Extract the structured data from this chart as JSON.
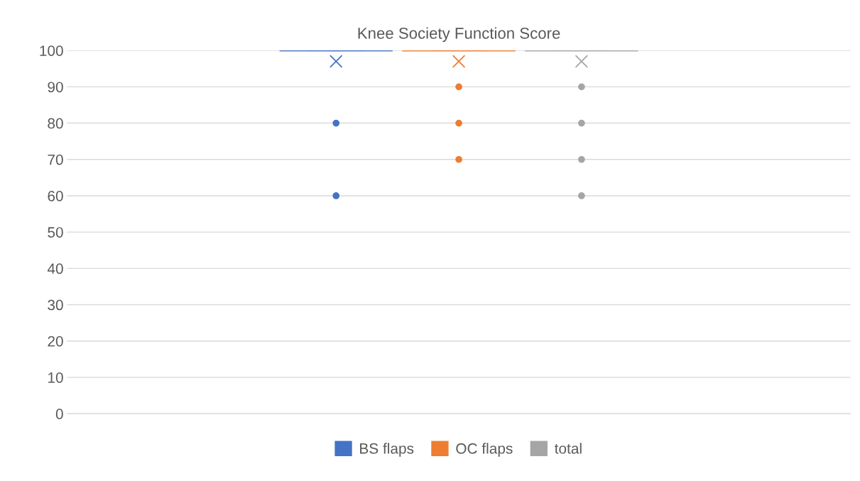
{
  "chart_data": {
    "type": "box",
    "title": "Knee Society Function Score",
    "categories": [
      null
    ],
    "series": [
      {
        "name": "BS flaps",
        "color": "#4472c4",
        "boxes": [
          {
            "low": 100,
            "q1": 100,
            "median": 100,
            "q3": 100,
            "high": 100,
            "mean": 97,
            "outliers": [
              80,
              60
            ]
          }
        ]
      },
      {
        "name": "OC flaps",
        "color": "#ed7d31",
        "boxes": [
          {
            "low": 100,
            "q1": 100,
            "median": 100,
            "q3": 100,
            "high": 100,
            "mean": 97,
            "outliers": [
              90,
              80,
              70
            ]
          }
        ]
      },
      {
        "name": "total",
        "color": "#a5a5a5",
        "boxes": [
          {
            "low": 100,
            "q1": 100,
            "median": 100,
            "q3": 100,
            "high": 100,
            "mean": 97,
            "outliers": [
              90,
              80,
              70,
              60
            ]
          }
        ]
      }
    ],
    "ylim": [
      0,
      100
    ],
    "yticks": [
      0,
      10,
      20,
      30,
      40,
      50,
      60,
      70,
      80,
      90,
      100
    ],
    "grid": "y",
    "legend": "bottom"
  }
}
